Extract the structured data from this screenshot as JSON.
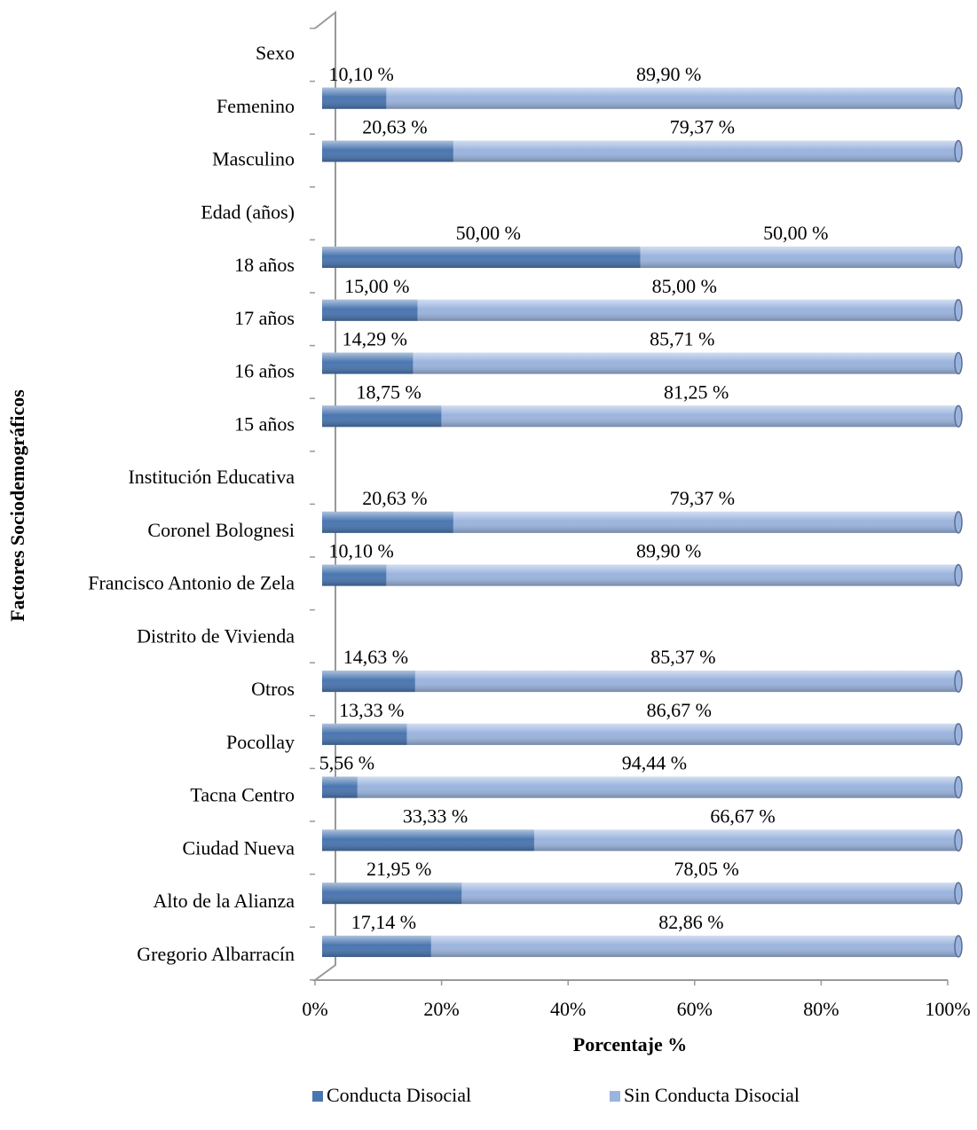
{
  "chart_data": {
    "type": "bar",
    "orientation": "horizontal",
    "stacked": true,
    "y_axis_label": "Factores Sociodemográficos",
    "x_axis_label": "Porcentaje %",
    "categories": [
      "Sexo",
      "Femenino",
      "Masculino",
      "Edad (años)",
      "18 años",
      "17 años",
      "16 años",
      "15 años",
      "Institución Educativa",
      "Coronel Bolognesi",
      "Francisco Antonio de Zela",
      "Distrito de Vivienda",
      "Otros",
      "Pocollay",
      "Tacna Centro",
      "Ciudad Nueva",
      "Alto de la Alianza",
      "Gregorio Albarracín"
    ],
    "series": [
      {
        "name": "Conducta Disocial",
        "color": "#4a76b0",
        "values": [
          null,
          10.1,
          20.63,
          null,
          50.0,
          15.0,
          14.29,
          18.75,
          null,
          20.63,
          10.1,
          null,
          14.63,
          13.33,
          5.56,
          33.33,
          21.95,
          17.14
        ],
        "value_labels": [
          null,
          "10,10 %",
          "20,63 %",
          null,
          "50,00 %",
          "15,00 %",
          "14,29 %",
          "18,75 %",
          null,
          "20,63 %",
          "10,10 %",
          null,
          "14,63 %",
          "13,33 %",
          "5,56 %",
          "33,33 %",
          "21,95 %",
          "17,14 %"
        ]
      },
      {
        "name": "Sin Conducta Disocial",
        "color": "#9bb4de",
        "values": [
          null,
          89.9,
          79.37,
          null,
          50.0,
          85.0,
          85.71,
          81.25,
          null,
          79.37,
          89.9,
          null,
          85.37,
          86.67,
          94.44,
          66.67,
          78.05,
          82.86
        ],
        "value_labels": [
          null,
          "89,90 %",
          "79,37 %",
          null,
          "50,00 %",
          "85,00 %",
          "85,71 %",
          "81,25 %",
          null,
          "79,37 %",
          "89,90 %",
          null,
          "85,37 %",
          "86,67 %",
          "94,44 %",
          "66,67 %",
          "78,05 %",
          "82,86 %"
        ]
      }
    ],
    "xlim": [
      0,
      100
    ],
    "xticks": [
      {
        "value": 0,
        "label": "0%"
      },
      {
        "value": 20,
        "label": "20%"
      },
      {
        "value": 40,
        "label": "40%"
      },
      {
        "value": 60,
        "label": "60%"
      },
      {
        "value": 80,
        "label": "80%"
      },
      {
        "value": 100,
        "label": "100%"
      }
    ],
    "legend": "bottom"
  }
}
